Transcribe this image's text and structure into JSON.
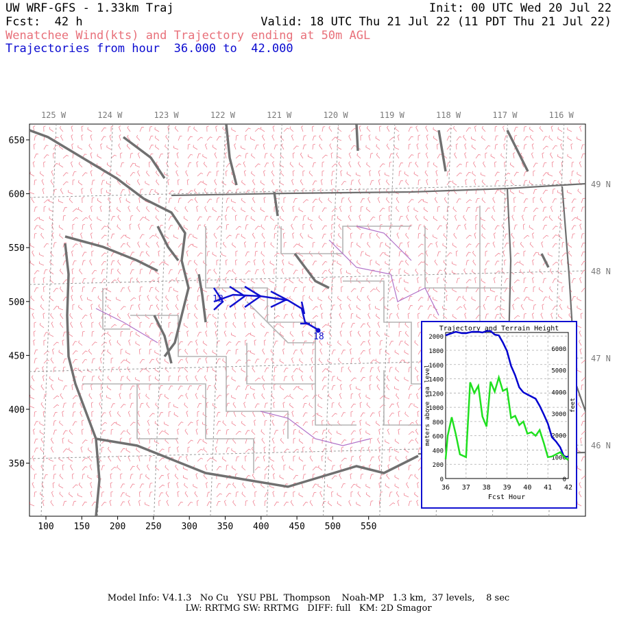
{
  "header": {
    "title": "UW WRF-GFS - 1.33km Traj",
    "init": "Init: 00 UTC Wed 20 Jul 22",
    "fcst": "Fcst:  42 h",
    "valid": "Valid: 18 UTC Thu 21 Jul 22 (11 PDT Thu 21 Jul 22)",
    "subtitle": "Wenatchee Wind(kts) and Trajectory ending at 50m AGL",
    "traj_range": "Trajectories from hour  36.000 to  42.000"
  },
  "map": {
    "x_ticks": [
      "100",
      "150",
      "200",
      "250",
      "300",
      "350",
      "400",
      "450",
      "500",
      "550"
    ],
    "y_ticks": [
      "650",
      "600",
      "550",
      "500",
      "450",
      "400",
      "350"
    ],
    "lon_labels": [
      "125 W",
      "124 W",
      "123 W",
      "122 W",
      "121 W",
      "120 W",
      "119 W",
      "118 W",
      "117 W",
      "116 W"
    ],
    "lat_labels": [
      "49 N",
      "48 N",
      "47 N",
      "46 N"
    ],
    "traj_start_label": "18",
    "traj_end_label": "18",
    "colors": {
      "wind": "#f07080",
      "coast": "#707070",
      "county": "#b0b0b0",
      "traj": "#1010d0",
      "rivers": "#b060c0"
    }
  },
  "inset": {
    "title": "Trajectory and Terrain Height",
    "ylabel_left": "meters above sea level",
    "ylabel_right": "feet",
    "xlabel": "Fcst Hour",
    "x_ticks": [
      "36",
      "37",
      "38",
      "39",
      "40",
      "41",
      "42"
    ],
    "y_ticks_m": [
      "2000",
      "1800",
      "1600",
      "1400",
      "1200",
      "1000",
      "800",
      "600",
      "400",
      "200",
      "0"
    ],
    "y_ticks_ft": [
      "6000",
      "5000",
      "4000",
      "3000",
      "2000",
      "1000",
      "0"
    ]
  },
  "chart_data": {
    "type": "line",
    "title": "Trajectory and Terrain Height",
    "xlabel": "Fcst Hour",
    "ylabel": "meters above sea level",
    "xlim": [
      36,
      42
    ],
    "ylim": [
      0,
      2050
    ],
    "series": [
      {
        "name": "trajectory height",
        "color": "#0000d0",
        "x": [
          36.0,
          36.2,
          36.5,
          36.8,
          37.0,
          37.3,
          37.6,
          37.8,
          38.0,
          38.2,
          38.4,
          38.6,
          38.8,
          39.0,
          39.2,
          39.4,
          39.6,
          39.8,
          40.0,
          40.2,
          40.4,
          40.6,
          40.8,
          41.0,
          41.2,
          41.4,
          41.6,
          41.8,
          42.0
        ],
        "values": [
          2010,
          2030,
          2060,
          2040,
          2040,
          2060,
          2060,
          2050,
          2070,
          2070,
          2020,
          2010,
          1910,
          1790,
          1580,
          1450,
          1280,
          1210,
          1180,
          1150,
          1120,
          1020,
          900,
          770,
          580,
          520,
          440,
          300,
          310
        ]
      },
      {
        "name": "terrain height",
        "color": "#20e020",
        "x": [
          36.0,
          36.1,
          36.3,
          36.5,
          36.7,
          37.0,
          37.2,
          37.4,
          37.6,
          37.8,
          38.0,
          38.2,
          38.4,
          38.6,
          38.8,
          39.0,
          39.2,
          39.4,
          39.6,
          39.8,
          40.0,
          40.2,
          40.4,
          40.6,
          40.8,
          41.0,
          41.2,
          41.4,
          41.6,
          41.8,
          42.0
        ],
        "values": [
          270,
          600,
          860,
          620,
          340,
          300,
          1350,
          1200,
          1300,
          870,
          730,
          1360,
          1220,
          1420,
          1230,
          1260,
          850,
          880,
          750,
          800,
          630,
          650,
          600,
          680,
          500,
          300,
          310,
          340,
          370,
          300,
          260
        ]
      }
    ]
  },
  "footer": {
    "line1": "Model Info: V4.1.3   No Cu   YSU PBL  Thompson    Noah-MP   1.3 km,  37 levels,    8 sec",
    "line2": "LW: RRTMG SW: RRTMG   DIFF: full   KM: 2D Smagor"
  }
}
